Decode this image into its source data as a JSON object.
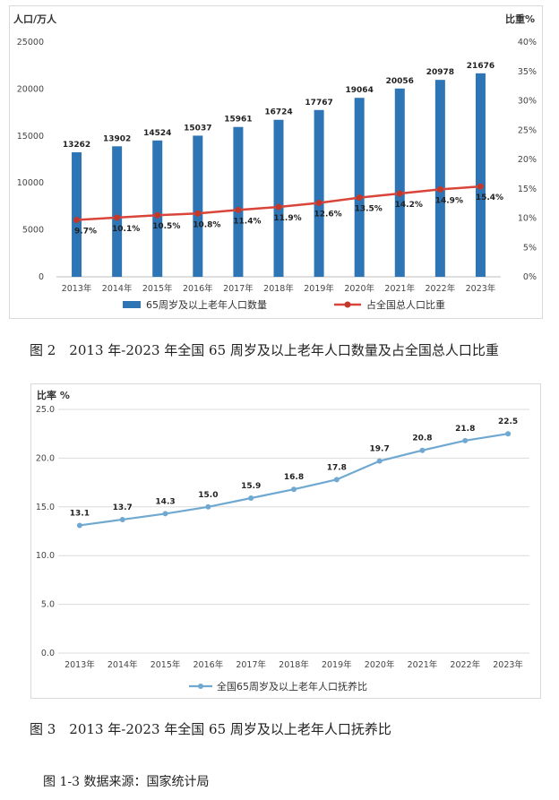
{
  "figure2": {
    "caption": "图 2　2013 年-2023 年全国 65 周岁及以上老年人口数量及占全国总人口比重",
    "chart_data": {
      "type": "bar",
      "categories": [
        "2013年",
        "2014年",
        "2015年",
        "2016年",
        "2017年",
        "2018年",
        "2019年",
        "2020年",
        "2021年",
        "2022年",
        "2023年"
      ],
      "series": [
        {
          "name": "65周岁及以上老年人口数量",
          "kind": "bar",
          "axis": "left",
          "values": [
            13262,
            13902,
            14524,
            15037,
            15961,
            16724,
            17767,
            19064,
            20056,
            20978,
            21676
          ],
          "labels": [
            "13262",
            "13902",
            "14524",
            "15037",
            "15961",
            "16724",
            "17767",
            "19064",
            "20056",
            "20978",
            "21676"
          ]
        },
        {
          "name": "占全国总人口比重",
          "kind": "line",
          "axis": "right",
          "values": [
            9.7,
            10.1,
            10.5,
            10.8,
            11.4,
            11.9,
            12.6,
            13.5,
            14.2,
            14.9,
            15.4
          ],
          "labels": [
            "9.7%",
            "10.1%",
            "10.5%",
            "10.8%",
            "11.4%",
            "11.9%",
            "12.6%",
            "13.5%",
            "14.2%",
            "14.9%",
            "15.4%"
          ]
        }
      ],
      "ylabel_left": "人口/万人",
      "ylabel_right": "比重%",
      "ylim_left": [
        0,
        25000
      ],
      "ylim_right": [
        0,
        40
      ],
      "yticks_left": [
        "0",
        "5000",
        "10000",
        "15000",
        "20000",
        "25000"
      ],
      "yticks_right": [
        "0%",
        "5%",
        "10%",
        "15%",
        "20%",
        "25%",
        "30%",
        "35%",
        "40%"
      ],
      "legend_position": "bottom",
      "colors": {
        "bar": "#2e75b6",
        "line": "#d9453a",
        "line_marker": "#c0392b"
      }
    }
  },
  "figure3": {
    "caption": "图 3　2013 年-2023 年全国 65 周岁及以上老年人口抚养比",
    "chart_data": {
      "type": "line",
      "categories": [
        "2013年",
        "2014年",
        "2015年",
        "2016年",
        "2017年",
        "2018年",
        "2019年",
        "2020年",
        "2021年",
        "2022年",
        "2023年"
      ],
      "series": [
        {
          "name": "全国65周岁及以上老年人口抚养比",
          "values": [
            13.1,
            13.7,
            14.3,
            15.0,
            15.9,
            16.8,
            17.8,
            19.7,
            20.8,
            21.8,
            22.5
          ],
          "labels": [
            "13.1",
            "13.7",
            "14.3",
            "15.0",
            "15.9",
            "16.8",
            "17.8",
            "19.7",
            "20.8",
            "21.8",
            "22.5"
          ]
        }
      ],
      "ylabel": "比率 %",
      "ylim": [
        0,
        25
      ],
      "yticks": [
        "0.0",
        "5.0",
        "10.0",
        "15.0",
        "20.0",
        "25.0"
      ],
      "grid": true,
      "legend_position": "bottom",
      "colors": {
        "line": "#6fa8d0",
        "grid": "#dcdcdc"
      }
    }
  },
  "source": "图 1-3 数据来源：国家统计局"
}
